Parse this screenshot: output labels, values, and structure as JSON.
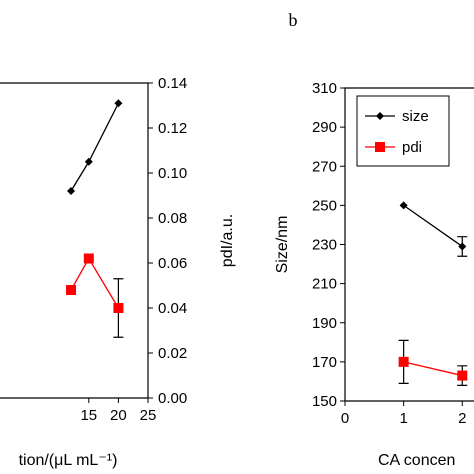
{
  "chart_data": [
    {
      "type": "line",
      "panel": "a",
      "xlabel": "tion/(μL mL⁻¹)",
      "xticks": [
        15,
        20,
        25
      ],
      "xlim": [
        0,
        25
      ],
      "ylabel_right": "pdI/a.u.",
      "yticks_right": [
        "0.00",
        "0.02",
        "0.04",
        "0.06",
        "0.08",
        "0.10",
        "0.12",
        "0.14"
      ],
      "ylim_right": [
        0,
        0.14
      ],
      "series": [
        {
          "key": "size",
          "marker": "diamond",
          "color": "#000000",
          "x": [
            12,
            15,
            20
          ],
          "y": [
            0.092,
            0.105,
            0.131
          ]
        },
        {
          "key": "pdi",
          "marker": "square",
          "color": "#ff0000",
          "x": [
            12,
            15,
            20
          ],
          "y": [
            0.048,
            0.062,
            0.04
          ],
          "yerr": [
            null,
            null,
            0.013
          ]
        }
      ]
    },
    {
      "type": "line",
      "panel": "b",
      "panel_label": "b",
      "xlabel": "CA concen",
      "xticks": [
        "0",
        "1",
        "2"
      ],
      "xlim": [
        0,
        2.2
      ],
      "ylabel": "Size/nm",
      "yticks": [
        "150",
        "170",
        "190",
        "210",
        "230",
        "250",
        "270",
        "290",
        "310"
      ],
      "ylim": [
        150,
        310
      ],
      "legend": [
        "size",
        "pdi"
      ],
      "legend_position": "top-left",
      "series": [
        {
          "name": "size",
          "marker": "diamond",
          "color": "#000000",
          "x": [
            1,
            2
          ],
          "y": [
            250,
            229
          ],
          "yerr": [
            null,
            5
          ]
        },
        {
          "name": "pdi",
          "marker": "square",
          "color": "#ff0000",
          "x": [
            1,
            2
          ],
          "y": [
            170,
            163
          ],
          "yerr": [
            11,
            5
          ]
        }
      ]
    }
  ]
}
